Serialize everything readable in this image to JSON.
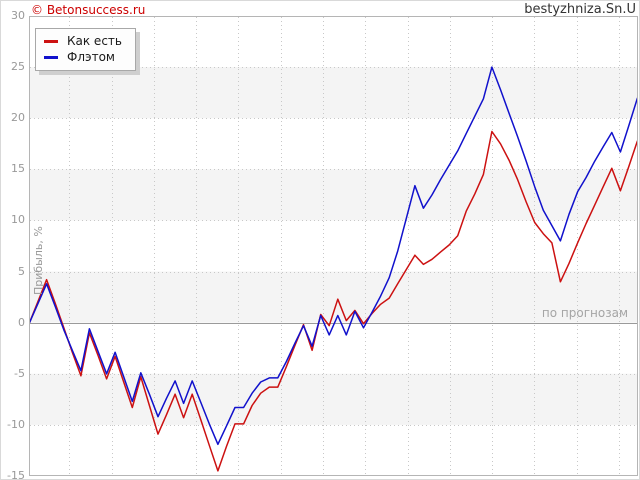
{
  "header": {
    "brand": "© Betonsuccess.ru",
    "watermark": "bestyzhniza.Sn.U"
  },
  "colors": {
    "brand": "#cc0000",
    "band": "#f4f4f4",
    "grid": "#c8c8c8",
    "zero_line": "#9a9a9a",
    "plot_border": "#b5b5b5",
    "tick_text": "#999999"
  },
  "chart_data": {
    "type": "line",
    "title": "",
    "ylabel": "Прибыль, %",
    "annotation": "по прогнозам",
    "ylim": [
      -15,
      30
    ],
    "yticks": [
      30,
      25,
      20,
      15,
      10,
      5,
      0,
      -5,
      -10,
      -15
    ],
    "grid": true,
    "legend_position": "top-left",
    "bands_gray": [
      [
        25,
        20
      ],
      [
        15,
        10
      ],
      [
        5,
        0
      ],
      [
        -5,
        -10
      ]
    ],
    "x_points": 72,
    "series": [
      {
        "name": "Как есть",
        "color": "#cc1111",
        "values": [
          0.0,
          2.1,
          4.2,
          1.9,
          -0.5,
          -2.9,
          -5.2,
          -1.0,
          -3.2,
          -5.5,
          -3.3,
          -5.8,
          -8.3,
          -5.3,
          -8.1,
          -10.9,
          -9.0,
          -7.0,
          -9.3,
          -7.0,
          -9.5,
          -12.0,
          -14.5,
          -12.1,
          -9.9,
          -9.9,
          -8.1,
          -6.9,
          -6.3,
          -6.3,
          -4.3,
          -2.2,
          -0.2,
          -2.7,
          0.8,
          -0.3,
          2.3,
          0.2,
          1.2,
          -0.1,
          0.9,
          1.8,
          2.4,
          3.8,
          5.2,
          6.6,
          5.7,
          6.2,
          6.9,
          7.6,
          8.5,
          10.9,
          12.6,
          14.5,
          18.7,
          17.5,
          15.9,
          14.0,
          11.8,
          9.8,
          8.7,
          7.8,
          4.0,
          5.8,
          7.8,
          9.7,
          11.5,
          13.3,
          15.1,
          12.9,
          15.3,
          17.8
        ]
      },
      {
        "name": "Флэтом",
        "color": "#1111cc",
        "values": [
          0.0,
          1.9,
          3.8,
          1.6,
          -0.7,
          -2.7,
          -4.7,
          -0.6,
          -2.8,
          -5.0,
          -2.9,
          -5.3,
          -7.7,
          -4.9,
          -7.0,
          -9.2,
          -7.4,
          -5.7,
          -7.9,
          -5.7,
          -7.8,
          -9.9,
          -11.9,
          -10.1,
          -8.3,
          -8.3,
          -6.9,
          -5.8,
          -5.4,
          -5.4,
          -3.8,
          -2.0,
          -0.3,
          -2.3,
          0.7,
          -1.2,
          0.7,
          -1.2,
          1.1,
          -0.5,
          1.0,
          2.6,
          4.4,
          7.0,
          10.2,
          13.4,
          11.2,
          12.5,
          14.0,
          15.4,
          16.8,
          18.5,
          20.2,
          21.9,
          25.0,
          22.8,
          20.5,
          18.2,
          15.8,
          13.3,
          11.0,
          9.5,
          8.0,
          10.6,
          12.8,
          14.2,
          15.8,
          17.2,
          18.6,
          16.7,
          19.3,
          22.0
        ]
      }
    ]
  }
}
